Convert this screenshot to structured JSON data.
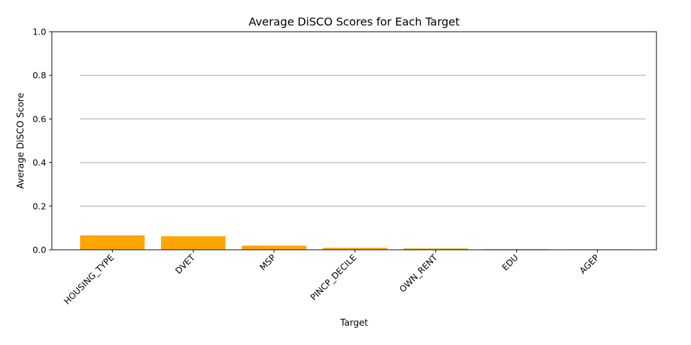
{
  "chart_data": {
    "type": "bar",
    "title": "Average DiSCO Scores for Each Target",
    "xlabel": "Target",
    "ylabel": "Average DiSCO Score",
    "categories": [
      "HOUSING_TYPE",
      "DVET",
      "MSP",
      "PINCP_DECILE",
      "OWN_RENT",
      "EDU",
      "AGEP"
    ],
    "values": [
      0.066,
      0.062,
      0.019,
      0.009,
      0.006,
      0.003,
      0.002
    ],
    "ylim": [
      0,
      1
    ],
    "yticks": [
      "0.0",
      "0.2",
      "0.4",
      "0.6",
      "0.8",
      "1.0"
    ],
    "grid": "horizontal",
    "bar_color": "#ffa500",
    "grid_color": "#c0c0c0"
  }
}
